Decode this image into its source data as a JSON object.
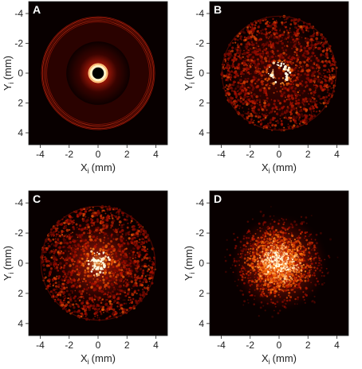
{
  "figure": {
    "panels": [
      "A",
      "B",
      "C",
      "D"
    ]
  },
  "chart_data": [
    {
      "type": "heatmap",
      "panel_label": "A",
      "description_pattern": "single-ring",
      "xlabel_main": "X",
      "xlabel_sub": "i",
      "xlabel_unit": "(mm)",
      "ylabel_main": "Y",
      "ylabel_sub": "i",
      "ylabel_unit": "(mm)",
      "xlim": [
        -4.8,
        4.8
      ],
      "ylim": [
        -4.8,
        4.8
      ],
      "y_inverted": true,
      "xticks": [
        -4,
        -2,
        0,
        2,
        4
      ],
      "yticks": [
        -4,
        -2,
        0,
        2,
        4
      ],
      "grid": false,
      "colormap": "hot",
      "colors": {
        "background": "#0a0000",
        "high": "#fff6d8",
        "mid": "#c2240f",
        "low": "#3a0300"
      }
    },
    {
      "type": "heatmap",
      "panel_label": "B",
      "description_pattern": "speckle-ring",
      "xlabel_main": "X",
      "xlabel_sub": "i",
      "xlabel_unit": "(mm)",
      "ylabel_main": "Y",
      "ylabel_sub": "i",
      "ylabel_unit": "(mm)",
      "xlim": [
        -4.8,
        4.8
      ],
      "ylim": [
        -4.8,
        4.8
      ],
      "y_inverted": true,
      "xticks": [
        -4,
        -2,
        0,
        2,
        4
      ],
      "yticks": [
        -4,
        -2,
        0,
        2,
        4
      ],
      "grid": false,
      "colormap": "hot"
    },
    {
      "type": "heatmap",
      "panel_label": "C",
      "description_pattern": "speckle-disk",
      "xlabel_main": "X",
      "xlabel_sub": "i",
      "xlabel_unit": "(mm)",
      "ylabel_main": "Y",
      "ylabel_sub": "i",
      "ylabel_unit": "(mm)",
      "xlim": [
        -4.8,
        4.8
      ],
      "ylim": [
        -4.8,
        4.8
      ],
      "y_inverted": true,
      "xticks": [
        -4,
        -2,
        0,
        2,
        4
      ],
      "yticks": [
        -4,
        -2,
        0,
        2,
        4
      ],
      "grid": false,
      "colormap": "hot"
    },
    {
      "type": "heatmap",
      "panel_label": "D",
      "description_pattern": "diffuse-speckle",
      "xlabel_main": "X",
      "xlabel_sub": "i",
      "xlabel_unit": "(mm)",
      "ylabel_main": "Y",
      "ylabel_sub": "i",
      "ylabel_unit": "(mm)",
      "xlim": [
        -4.8,
        4.8
      ],
      "ylim": [
        -4.8,
        4.8
      ],
      "y_inverted": true,
      "xticks": [
        -4,
        -2,
        0,
        2,
        4
      ],
      "yticks": [
        -4,
        -2,
        0,
        2,
        4
      ],
      "grid": false,
      "colormap": "hot"
    }
  ]
}
